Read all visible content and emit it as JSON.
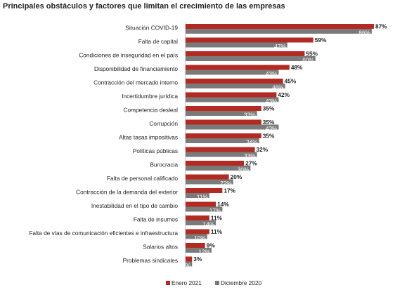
{
  "chart_data": {
    "type": "bar",
    "orientation": "horizontal",
    "title": "Principales obstáculos y factores que limitan el crecimiento de las empresas",
    "categories": [
      "Situación COVID-19",
      "Falta de capital",
      "Condiciones de inseguridad en el país",
      "Disponibilidad de financiamiento",
      "Contracción del mercado interno",
      "Incertidumbre jurídica",
      "Competencia desleal",
      "Corrupción",
      "Altas tasas impositivas",
      "Políticas públicas",
      "Burocracia",
      "Falta de personal calificado",
      "Contracción de la demanda del exterior",
      "Inestabilidad en el tipo de cambio",
      "Falta de insumos",
      "Falta de vías de comunicación eficientes e infraestructura",
      "Salarios altos",
      "Problemas sindicales"
    ],
    "series": [
      {
        "name": "Enero 2021",
        "color": "#b22a22",
        "values": [
          87,
          59,
          55,
          48,
          45,
          42,
          35,
          35,
          35,
          32,
          27,
          20,
          17,
          14,
          11,
          11,
          9,
          3
        ],
        "labels": [
          "87%",
          "59%",
          "55%",
          "48%",
          "45%",
          "42%",
          "35%",
          "35%",
          "35%",
          "32%",
          "27%",
          "20%",
          "17%",
          "14%",
          "11%",
          "11%",
          "9%",
          "3%"
        ]
      },
      {
        "name": "Diciembre 2020",
        "color": "#7a7a7a",
        "values": [
          86,
          47,
          60,
          43,
          46,
          43,
          33,
          43,
          34,
          33,
          30,
          22,
          11,
          17,
          14,
          10,
          12,
          3
        ],
        "labels": [
          "86%",
          "47%",
          "60%",
          "43%",
          "46%",
          "43%",
          "33%",
          "43%",
          "34%",
          "33%",
          "30%",
          "22%",
          "11%",
          "17%",
          "14%",
          "10%",
          "12%",
          "3%"
        ]
      }
    ],
    "xlim": [
      0,
      100
    ],
    "grid": false,
    "legend_position": "bottom-center"
  }
}
